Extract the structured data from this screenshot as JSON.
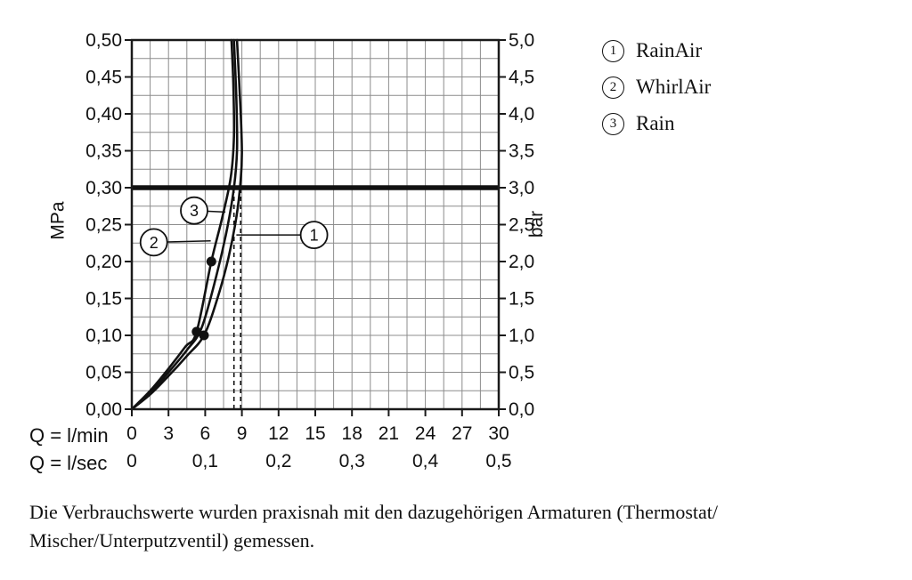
{
  "legend": {
    "items": [
      {
        "num": "1",
        "label": "RainAir"
      },
      {
        "num": "2",
        "label": "WhirlAir"
      },
      {
        "num": "3",
        "label": "Rain"
      }
    ]
  },
  "axes": {
    "left_title": "MPa",
    "right_title": "bar",
    "flow_min_label": "Q = l/min",
    "flow_sec_label": "Q = l/sec"
  },
  "caption": {
    "lines": [
      "Die Verbrauchswerte wurden praxisnah mit den dazugehörigen Armaturen (Thermostat/",
      "Mischer/Unterputzventil) gemessen."
    ]
  },
  "chart_data": {
    "type": "line",
    "title": "",
    "x_min": 0,
    "x_max": 30,
    "y_min": 0,
    "y_max": 0.5,
    "x_minor_step": 1.5,
    "y_minor_step": 0.025,
    "x_axis_label": "Q = l/min",
    "x2_axis_label": "Q = l/sec",
    "y_left_label": "MPa",
    "y_right_label": "bar",
    "x_ticks": [
      {
        "v": 0,
        "label": "0"
      },
      {
        "v": 3,
        "label": "3"
      },
      {
        "v": 6,
        "label": "6"
      },
      {
        "v": 9,
        "label": "9"
      },
      {
        "v": 12,
        "label": "12"
      },
      {
        "v": 15,
        "label": "15"
      },
      {
        "v": 18,
        "label": "18"
      },
      {
        "v": 21,
        "label": "21"
      },
      {
        "v": 24,
        "label": "24"
      },
      {
        "v": 27,
        "label": "27"
      },
      {
        "v": 30,
        "label": "30"
      }
    ],
    "x2_ticks": [
      {
        "v": 0,
        "label": "0"
      },
      {
        "v": 6,
        "label": "0,1"
      },
      {
        "v": 12,
        "label": "0,2"
      },
      {
        "v": 18,
        "label": "0,3"
      },
      {
        "v": 24,
        "label": "0,4"
      },
      {
        "v": 30,
        "label": "0,5"
      }
    ],
    "y_ticks_left": [
      {
        "v": 0,
        "label": "0,00"
      },
      {
        "v": 0.05,
        "label": "0,05"
      },
      {
        "v": 0.1,
        "label": "0,10"
      },
      {
        "v": 0.15,
        "label": "0,15"
      },
      {
        "v": 0.2,
        "label": "0,20"
      },
      {
        "v": 0.25,
        "label": "0,25"
      },
      {
        "v": 0.3,
        "label": "0,30"
      },
      {
        "v": 0.35,
        "label": "0,35"
      },
      {
        "v": 0.4,
        "label": "0,40"
      },
      {
        "v": 0.45,
        "label": "0,45"
      },
      {
        "v": 0.5,
        "label": "0,50"
      }
    ],
    "y_ticks_right": [
      {
        "v": 0,
        "label": "0,0"
      },
      {
        "v": 0.05,
        "label": "0,5"
      },
      {
        "v": 0.1,
        "label": "1,0"
      },
      {
        "v": 0.15,
        "label": "1,5"
      },
      {
        "v": 0.2,
        "label": "2,0"
      },
      {
        "v": 0.25,
        "label": "2,5"
      },
      {
        "v": 0.3,
        "label": "3,0"
      },
      {
        "v": 0.35,
        "label": "3,5"
      },
      {
        "v": 0.4,
        "label": "4,0"
      },
      {
        "v": 0.45,
        "label": "4,5"
      },
      {
        "v": 0.5,
        "label": "5,0"
      }
    ],
    "reference_line_mpa": 0.3,
    "dashed_lines": [
      {
        "x": 8.35,
        "y_top": 0.305
      },
      {
        "x": 8.9,
        "y_top": 0.305
      }
    ],
    "measurement_points": [
      [
        5.3,
        0.105
      ],
      [
        5.9,
        0.1
      ],
      [
        6.5,
        0.2
      ]
    ],
    "series": [
      {
        "name": "RainAir",
        "points": [
          [
            0,
            0
          ],
          [
            1.5,
            0.02
          ],
          [
            3,
            0.045
          ],
          [
            4.5,
            0.072
          ],
          [
            5.9,
            0.1
          ],
          [
            7,
            0.15
          ],
          [
            7.9,
            0.205
          ],
          [
            8.55,
            0.26
          ],
          [
            8.9,
            0.31
          ],
          [
            9,
            0.35
          ],
          [
            8.85,
            0.42
          ],
          [
            8.6,
            0.5
          ]
        ]
      },
      {
        "name": "WhirlAir",
        "points": [
          [
            0,
            0
          ],
          [
            1.5,
            0.025
          ],
          [
            3,
            0.055
          ],
          [
            4.4,
            0.085
          ],
          [
            5.3,
            0.105
          ],
          [
            6.5,
            0.2
          ],
          [
            7.4,
            0.26
          ],
          [
            8.1,
            0.315
          ],
          [
            8.35,
            0.37
          ],
          [
            8.3,
            0.44
          ],
          [
            8.15,
            0.5
          ]
        ]
      },
      {
        "name": "Rain",
        "points": [
          [
            0,
            0
          ],
          [
            1.5,
            0.022
          ],
          [
            3,
            0.05
          ],
          [
            4.5,
            0.08
          ],
          [
            5.7,
            0.11
          ],
          [
            6.9,
            0.18
          ],
          [
            7.8,
            0.245
          ],
          [
            8.35,
            0.3
          ],
          [
            8.6,
            0.35
          ],
          [
            8.55,
            0.42
          ],
          [
            8.35,
            0.5
          ]
        ]
      }
    ],
    "callouts": [
      {
        "num": "1",
        "cx": 14.9,
        "cy": 0.236,
        "tx": 8.55,
        "ty": 0.236
      },
      {
        "num": "2",
        "cx": 1.8,
        "cy": 0.226,
        "tx": 6.45,
        "ty": 0.228
      },
      {
        "num": "3",
        "cx": 5.1,
        "cy": 0.269,
        "tx": 7.65,
        "ty": 0.267
      }
    ],
    "colors": {
      "ink": "#111111",
      "grid": "#8c8c8c",
      "frame": "#1a1a1a"
    },
    "legend_position": "top-right",
    "grid": true
  }
}
